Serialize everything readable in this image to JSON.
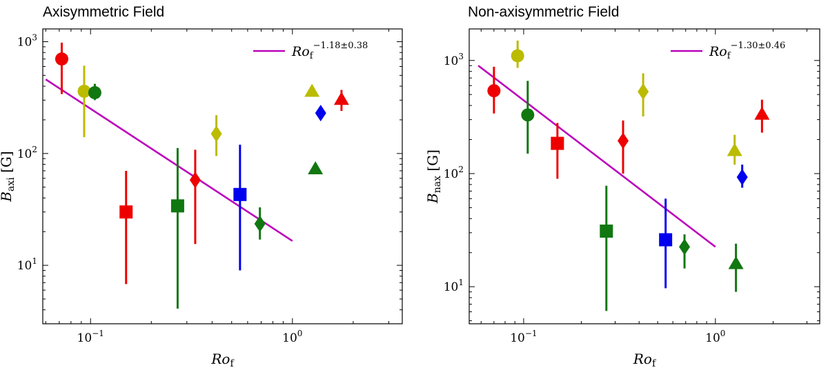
{
  "chart_data": [
    {
      "type": "scatter",
      "title": "Axisymmetric Field",
      "xlabel": {
        "base": "Ro",
        "sub": "f"
      },
      "ylabel": {
        "base": "B",
        "sub": "axi",
        "unit": "[G]"
      },
      "xscale": "log",
      "yscale": "log",
      "xlim": [
        0.058,
        3.5
      ],
      "ylim": [
        3.0,
        1300
      ],
      "xticks": [
        {
          "value": 0.1,
          "base": "10",
          "exp": "−1"
        },
        {
          "value": 1,
          "base": "10",
          "exp": "0"
        }
      ],
      "yticks": [
        {
          "value": 10,
          "base": "10",
          "exp": "1"
        },
        {
          "value": 100,
          "base": "10",
          "exp": "2"
        },
        {
          "value": 1000,
          "base": "10",
          "exp": "3"
        }
      ],
      "legend": {
        "position": "top-right",
        "label_base": "Ro",
        "label_sub": "f",
        "label_sup": "−1.18±0.38"
      },
      "fit": {
        "color": "#bb00bb",
        "x": [
          0.06,
          1.0
        ],
        "y": [
          460,
          16.5
        ]
      },
      "points": [
        {
          "x": 0.072,
          "y": 700,
          "yerr": [
            340,
            980
          ],
          "marker": "circle",
          "color": "#ee0000"
        },
        {
          "x": 0.093,
          "y": 360,
          "yerr": [
            140,
            610
          ],
          "marker": "circle",
          "color": "#bbbb00"
        },
        {
          "x": 0.105,
          "y": 350,
          "yerr": [
            300,
            420
          ],
          "marker": "circle",
          "color": "#117711"
        },
        {
          "x": 0.15,
          "y": 30,
          "yerr": [
            6.8,
            70
          ],
          "marker": "square",
          "color": "#ee0000"
        },
        {
          "x": 0.27,
          "y": 34,
          "yerr": [
            4.1,
            112
          ],
          "marker": "square",
          "color": "#117711"
        },
        {
          "x": 0.33,
          "y": 58,
          "yerr": [
            15.5,
            108
          ],
          "marker": "diamond",
          "color": "#ee0000"
        },
        {
          "x": 0.42,
          "y": 150,
          "yerr": [
            95,
            220
          ],
          "marker": "diamond",
          "color": "#bbbb00"
        },
        {
          "x": 0.55,
          "y": 43,
          "yerr": [
            9.0,
            120
          ],
          "marker": "square",
          "color": "#0000ee"
        },
        {
          "x": 0.69,
          "y": 23.5,
          "yerr": [
            17,
            33
          ],
          "marker": "diamond",
          "color": "#117711"
        },
        {
          "x": 1.25,
          "y": 360,
          "yerr": null,
          "marker": "triangle",
          "color": "#bbbb00"
        },
        {
          "x": 1.38,
          "y": 230,
          "yerr": null,
          "marker": "diamond",
          "color": "#0000ee"
        },
        {
          "x": 1.75,
          "y": 305,
          "yerr": [
            240,
            370
          ],
          "marker": "triangle",
          "color": "#ee0000"
        },
        {
          "x": 1.3,
          "y": 73,
          "yerr": null,
          "marker": "triangle",
          "color": "#117711"
        }
      ]
    },
    {
      "type": "scatter",
      "title": "Non-axisymmetric Field",
      "xlabel": {
        "base": "Ro",
        "sub": "f"
      },
      "ylabel": {
        "base": "B",
        "sub": "nax",
        "unit": "[G]"
      },
      "xscale": "log",
      "yscale": "log",
      "xlim": [
        0.052,
        3.5
      ],
      "ylim": [
        4.7,
        1900
      ],
      "xticks": [
        {
          "value": 0.1,
          "base": "10",
          "exp": "−1"
        },
        {
          "value": 1,
          "base": "10",
          "exp": "0"
        }
      ],
      "yticks": [
        {
          "value": 10,
          "base": "10",
          "exp": "1"
        },
        {
          "value": 100,
          "base": "10",
          "exp": "2"
        },
        {
          "value": 1000,
          "base": "10",
          "exp": "3"
        }
      ],
      "legend": {
        "position": "top-right",
        "label_base": "Ro",
        "label_sub": "f",
        "label_sup": "−1.30±0.46"
      },
      "fit": {
        "color": "#bb00bb",
        "x": [
          0.058,
          1.0
        ],
        "y": [
          900,
          22.5
        ]
      },
      "points": [
        {
          "x": 0.07,
          "y": 540,
          "yerr": [
            340,
            880
          ],
          "marker": "circle",
          "color": "#ee0000"
        },
        {
          "x": 0.093,
          "y": 1100,
          "yerr": [
            860,
            1500
          ],
          "marker": "circle",
          "color": "#bbbb00"
        },
        {
          "x": 0.105,
          "y": 330,
          "yerr": [
            150,
            660
          ],
          "marker": "circle",
          "color": "#117711"
        },
        {
          "x": 0.15,
          "y": 185,
          "yerr": [
            90,
            280
          ],
          "marker": "square",
          "color": "#ee0000"
        },
        {
          "x": 0.27,
          "y": 31,
          "yerr": [
            6.1,
            78
          ],
          "marker": "square",
          "color": "#117711"
        },
        {
          "x": 0.33,
          "y": 195,
          "yerr": [
            100,
            295
          ],
          "marker": "diamond",
          "color": "#ee0000"
        },
        {
          "x": 0.42,
          "y": 530,
          "yerr": [
            320,
            770
          ],
          "marker": "diamond",
          "color": "#bbbb00"
        },
        {
          "x": 0.55,
          "y": 26,
          "yerr": [
            9.7,
            60
          ],
          "marker": "square",
          "color": "#0000ee"
        },
        {
          "x": 0.69,
          "y": 22.5,
          "yerr": [
            14.5,
            29
          ],
          "marker": "diamond",
          "color": "#117711"
        },
        {
          "x": 1.26,
          "y": 160,
          "yerr": [
            120,
            220
          ],
          "marker": "triangle",
          "color": "#bbbb00"
        },
        {
          "x": 1.38,
          "y": 93,
          "yerr": [
            75,
            120
          ],
          "marker": "diamond",
          "color": "#0000ee"
        },
        {
          "x": 1.75,
          "y": 335,
          "yerr": [
            230,
            450
          ],
          "marker": "triangle",
          "color": "#ee0000"
        },
        {
          "x": 1.28,
          "y": 16,
          "yerr": [
            9,
            24
          ],
          "marker": "triangle",
          "color": "#117711"
        }
      ]
    }
  ]
}
